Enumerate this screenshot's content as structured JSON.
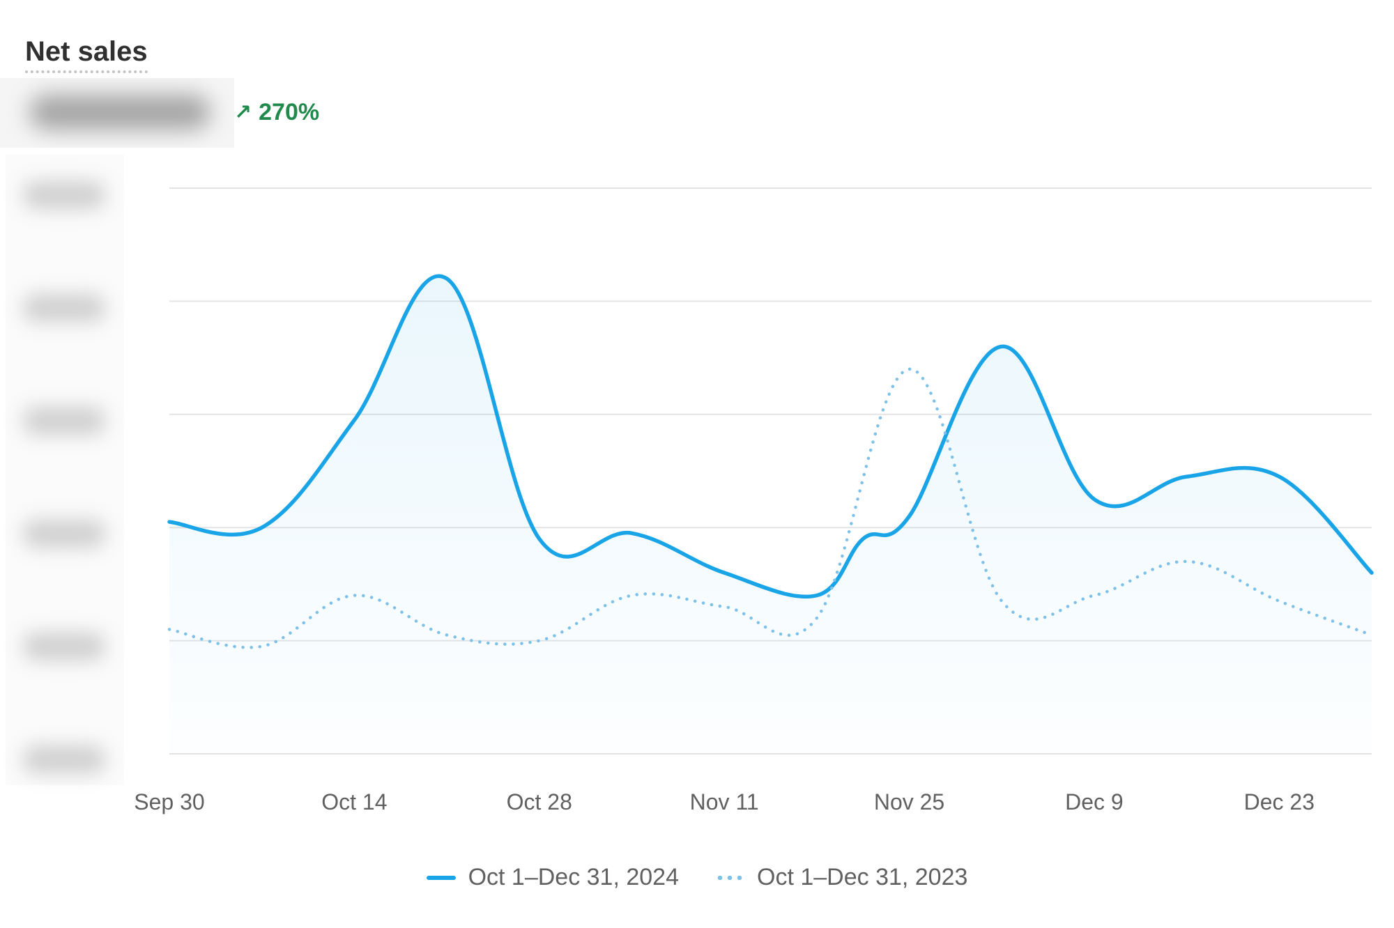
{
  "header": {
    "title": "Net sales",
    "change_arrow": "↗",
    "change_pct": "270%"
  },
  "colors": {
    "current": "#18a4e6",
    "previous": "#7ec1e8",
    "positive": "#1f8a4c",
    "grid": "#e4e4e4"
  },
  "chart_data": {
    "type": "line",
    "title": "Net sales",
    "xlabel": "",
    "ylabel": "",
    "y_tick_labels_hidden": true,
    "ylim": [
      0,
      5
    ],
    "grid": true,
    "legend_position": "bottom",
    "x_ticks": [
      "Sep 30",
      "Oct 14",
      "Oct 28",
      "Nov 11",
      "Nov 25",
      "Dec 9",
      "Dec 23"
    ],
    "x_tick_indices": [
      0,
      2,
      4,
      6,
      8,
      10,
      12
    ],
    "x_domain": [
      0,
      13
    ],
    "series": [
      {
        "name": "Oct 1–Dec 31, 2024",
        "style": "solid",
        "x": [
          0,
          1,
          2,
          3,
          4,
          5,
          6,
          7,
          7.5,
          8,
          9,
          10,
          11,
          12,
          13
        ],
        "values": [
          2.05,
          2.0,
          2.95,
          4.2,
          1.9,
          1.95,
          1.6,
          1.4,
          1.9,
          2.1,
          3.6,
          2.25,
          2.45,
          2.45,
          1.6
        ]
      },
      {
        "name": "Oct 1–Dec 31, 2023",
        "style": "dotted",
        "x": [
          0,
          1,
          2,
          3,
          4,
          5,
          6,
          7,
          8,
          9,
          10,
          11,
          12,
          13
        ],
        "values": [
          1.1,
          0.95,
          1.4,
          1.05,
          1.0,
          1.4,
          1.3,
          1.2,
          3.4,
          1.35,
          1.4,
          1.7,
          1.35,
          1.05
        ]
      }
    ]
  },
  "legend": {
    "current_label": "Oct 1–Dec 31, 2024",
    "previous_label": "Oct 1–Dec 31, 2023"
  }
}
